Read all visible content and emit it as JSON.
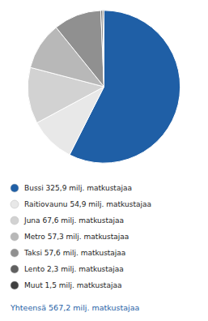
{
  "chart_data": {
    "type": "pie",
    "categories": [
      "Bussi 325,9 milj. matkustajaa",
      "Raitiovaunu 54,9 milj. matkustajaa",
      "Juna 67,6 milj. matkustajaa",
      "Metro 57,3 milj. matkustajaa",
      "Taksi 57,6 milj. matkustajaa",
      "Lento 2,3 milj. matkustajaa",
      "Muut 1,5 milj. matkustajaa"
    ],
    "values": [
      325.9,
      54.9,
      67.6,
      57.3,
      57.6,
      2.3,
      1.5
    ],
    "colors": [
      "#1f5fa6",
      "#e8e8e8",
      "#d2d2d2",
      "#b8b8b8",
      "#909090",
      "#606060",
      "#404040"
    ],
    "legend": "bottom",
    "annotations": [
      "Yhteensä 567,2 milj. matkustajaa"
    ]
  }
}
